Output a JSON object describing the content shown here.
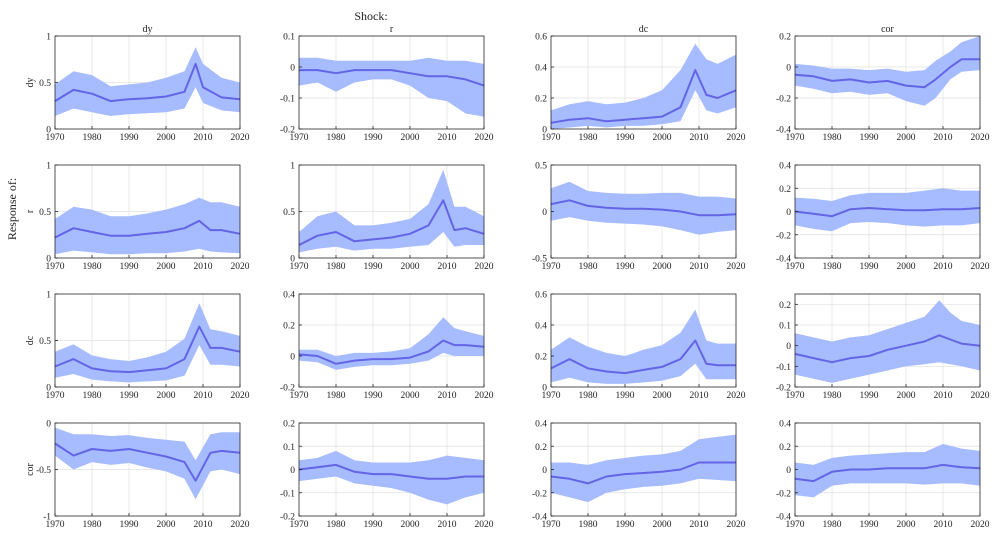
{
  "figure": {
    "shock_label": "Shock:",
    "response_label": "Response of:"
  },
  "colors": {
    "band": "#a7bcff",
    "line": "#6464e6",
    "axis": "#262626",
    "grid": "#e0e0e0"
  },
  "chart_data": {
    "type": "line",
    "layout": "4x4 grid of impulse-response panels; rows = response variable, columns = shock",
    "x_axis": {
      "range": [
        1970,
        2020
      ],
      "ticks": [
        1970,
        1980,
        1990,
        2000,
        2010,
        2020
      ]
    },
    "column_titles": [
      "dy",
      "r",
      "dc",
      "cor"
    ],
    "row_labels": [
      "dy",
      "r",
      "dc",
      "cor"
    ],
    "panels": [
      {
        "row": "dy",
        "col": "dy",
        "ylim": [
          0,
          1
        ],
        "yticks": [
          "0",
          "0.5",
          "1"
        ],
        "x": [
          1970,
          1975,
          1980,
          1985,
          1990,
          1995,
          2000,
          2005,
          2008,
          2010,
          2015,
          2020
        ],
        "y": [
          0.3,
          0.42,
          0.38,
          0.3,
          0.32,
          0.33,
          0.35,
          0.4,
          0.7,
          0.45,
          0.34,
          0.32
        ],
        "lower": [
          0.14,
          0.22,
          0.18,
          0.14,
          0.16,
          0.17,
          0.18,
          0.22,
          0.45,
          0.28,
          0.2,
          0.18
        ],
        "upper": [
          0.48,
          0.62,
          0.58,
          0.46,
          0.48,
          0.5,
          0.55,
          0.62,
          0.88,
          0.7,
          0.55,
          0.5
        ]
      },
      {
        "row": "dy",
        "col": "r",
        "ylim": [
          -0.2,
          0.1
        ],
        "yticks": [
          "-0.2",
          "-0.1",
          "0",
          "0.1"
        ],
        "x": [
          1970,
          1975,
          1980,
          1985,
          1990,
          1995,
          2000,
          2005,
          2010,
          2015,
          2020
        ],
        "y": [
          -0.01,
          -0.01,
          -0.02,
          -0.01,
          -0.01,
          -0.01,
          -0.02,
          -0.03,
          -0.03,
          -0.04,
          -0.06
        ],
        "lower": [
          -0.06,
          -0.05,
          -0.08,
          -0.05,
          -0.04,
          -0.04,
          -0.06,
          -0.1,
          -0.11,
          -0.15,
          -0.16
        ],
        "upper": [
          0.03,
          0.03,
          0.02,
          0.02,
          0.02,
          0.02,
          0.02,
          0.03,
          0.02,
          0.02,
          0.01
        ]
      },
      {
        "row": "dy",
        "col": "dc",
        "ylim": [
          0,
          0.6
        ],
        "yticks": [
          "0",
          "0.2",
          "0.4",
          "0.6"
        ],
        "x": [
          1970,
          1975,
          1980,
          1985,
          1990,
          1995,
          2000,
          2005,
          2009,
          2012,
          2015,
          2020
        ],
        "y": [
          0.04,
          0.06,
          0.07,
          0.05,
          0.06,
          0.07,
          0.08,
          0.14,
          0.38,
          0.22,
          0.2,
          0.25
        ],
        "lower": [
          0.0,
          0.01,
          0.02,
          0.01,
          0.02,
          0.02,
          0.03,
          0.05,
          0.25,
          0.12,
          0.1,
          0.14
        ],
        "upper": [
          0.12,
          0.16,
          0.18,
          0.16,
          0.17,
          0.2,
          0.25,
          0.38,
          0.55,
          0.45,
          0.42,
          0.48
        ]
      },
      {
        "row": "dy",
        "col": "cor",
        "ylim": [
          -0.4,
          0.2
        ],
        "yticks": [
          "-0.4",
          "-0.2",
          "0",
          "0.2"
        ],
        "x": [
          1970,
          1975,
          1980,
          1985,
          1990,
          1995,
          2000,
          2005,
          2008,
          2012,
          2015,
          2020
        ],
        "y": [
          -0.05,
          -0.06,
          -0.09,
          -0.08,
          -0.1,
          -0.09,
          -0.12,
          -0.13,
          -0.08,
          0.0,
          0.05,
          0.05
        ],
        "lower": [
          -0.12,
          -0.14,
          -0.17,
          -0.16,
          -0.18,
          -0.17,
          -0.22,
          -0.25,
          -0.2,
          -0.08,
          -0.03,
          -0.02
        ],
        "upper": [
          0.02,
          0.01,
          -0.01,
          -0.01,
          -0.02,
          -0.01,
          -0.03,
          -0.02,
          0.04,
          0.1,
          0.16,
          0.2
        ]
      },
      {
        "row": "r",
        "col": "dy",
        "ylim": [
          0,
          1
        ],
        "yticks": [
          "0",
          "0.5",
          "1"
        ],
        "x": [
          1970,
          1975,
          1980,
          1985,
          1990,
          1995,
          2000,
          2005,
          2009,
          2012,
          2015,
          2020
        ],
        "y": [
          0.22,
          0.32,
          0.28,
          0.24,
          0.24,
          0.26,
          0.28,
          0.32,
          0.4,
          0.3,
          0.3,
          0.26
        ],
        "lower": [
          0.04,
          0.08,
          0.06,
          0.04,
          0.04,
          0.05,
          0.05,
          0.07,
          0.1,
          0.07,
          0.06,
          0.05
        ],
        "upper": [
          0.42,
          0.55,
          0.52,
          0.45,
          0.45,
          0.48,
          0.52,
          0.58,
          0.65,
          0.6,
          0.6,
          0.55
        ]
      },
      {
        "row": "r",
        "col": "r",
        "ylim": [
          0,
          1
        ],
        "yticks": [
          "0",
          "0.5",
          "1"
        ],
        "x": [
          1970,
          1975,
          1980,
          1985,
          1990,
          1995,
          2000,
          2005,
          2009,
          2012,
          2015,
          2020
        ],
        "y": [
          0.14,
          0.24,
          0.28,
          0.18,
          0.2,
          0.22,
          0.26,
          0.35,
          0.62,
          0.3,
          0.32,
          0.26
        ],
        "lower": [
          0.06,
          0.1,
          0.12,
          0.08,
          0.1,
          0.1,
          0.12,
          0.14,
          0.28,
          0.12,
          0.14,
          0.14
        ],
        "upper": [
          0.28,
          0.45,
          0.5,
          0.35,
          0.35,
          0.38,
          0.42,
          0.58,
          0.95,
          0.55,
          0.55,
          0.45
        ]
      },
      {
        "row": "r",
        "col": "dc",
        "ylim": [
          -0.5,
          0.5
        ],
        "yticks": [
          "-0.5",
          "0",
          "0.5"
        ],
        "x": [
          1970,
          1975,
          1980,
          1985,
          1990,
          1995,
          2000,
          2005,
          2010,
          2015,
          2020
        ],
        "y": [
          0.08,
          0.12,
          0.06,
          0.04,
          0.03,
          0.03,
          0.02,
          0.0,
          -0.04,
          -0.04,
          -0.03
        ],
        "lower": [
          -0.1,
          -0.06,
          -0.1,
          -0.12,
          -0.13,
          -0.14,
          -0.16,
          -0.2,
          -0.25,
          -0.22,
          -0.2
        ],
        "upper": [
          0.25,
          0.32,
          0.22,
          0.2,
          0.19,
          0.19,
          0.2,
          0.2,
          0.16,
          0.16,
          0.14
        ]
      },
      {
        "row": "r",
        "col": "cor",
        "ylim": [
          -0.4,
          0.4
        ],
        "yticks": [
          "-0.4",
          "-0.2",
          "0",
          "0.2",
          "0.4"
        ],
        "x": [
          1970,
          1975,
          1980,
          1985,
          1990,
          1995,
          2000,
          2005,
          2010,
          2015,
          2020
        ],
        "y": [
          0.0,
          -0.02,
          -0.04,
          0.02,
          0.03,
          0.02,
          0.01,
          0.01,
          0.02,
          0.02,
          0.03
        ],
        "lower": [
          -0.12,
          -0.15,
          -0.17,
          -0.1,
          -0.09,
          -0.1,
          -0.12,
          -0.13,
          -0.12,
          -0.12,
          -0.1
        ],
        "upper": [
          0.12,
          0.11,
          0.09,
          0.14,
          0.16,
          0.16,
          0.16,
          0.18,
          0.2,
          0.18,
          0.18
        ]
      },
      {
        "row": "dc",
        "col": "dy",
        "ylim": [
          0,
          1
        ],
        "yticks": [
          "0",
          "0.5",
          "1"
        ],
        "x": [
          1970,
          1975,
          1980,
          1985,
          1990,
          1995,
          2000,
          2005,
          2009,
          2012,
          2015,
          2020
        ],
        "y": [
          0.22,
          0.3,
          0.2,
          0.17,
          0.16,
          0.18,
          0.2,
          0.3,
          0.65,
          0.42,
          0.42,
          0.38
        ],
        "lower": [
          0.1,
          0.14,
          0.08,
          0.06,
          0.05,
          0.06,
          0.07,
          0.12,
          0.45,
          0.24,
          0.24,
          0.22
        ],
        "upper": [
          0.38,
          0.46,
          0.34,
          0.3,
          0.28,
          0.32,
          0.38,
          0.52,
          0.9,
          0.62,
          0.6,
          0.55
        ]
      },
      {
        "row": "dc",
        "col": "r",
        "ylim": [
          -0.2,
          0.4
        ],
        "yticks": [
          "-0.2",
          "0",
          "0.2",
          "0.4"
        ],
        "x": [
          1970,
          1975,
          1980,
          1985,
          1990,
          1995,
          2000,
          2005,
          2009,
          2012,
          2015,
          2020
        ],
        "y": [
          0.01,
          0.0,
          -0.05,
          -0.03,
          -0.02,
          -0.02,
          -0.01,
          0.03,
          0.1,
          0.07,
          0.07,
          0.06
        ],
        "lower": [
          -0.03,
          -0.04,
          -0.09,
          -0.07,
          -0.06,
          -0.06,
          -0.05,
          -0.03,
          0.02,
          0.0,
          0.0,
          0.0
        ],
        "upper": [
          0.04,
          0.04,
          0.0,
          0.02,
          0.02,
          0.03,
          0.05,
          0.14,
          0.25,
          0.18,
          0.16,
          0.13
        ]
      },
      {
        "row": "dc",
        "col": "dc",
        "ylim": [
          0,
          0.6
        ],
        "yticks": [
          "0",
          "0.2",
          "0.4",
          "0.6"
        ],
        "x": [
          1970,
          1975,
          1980,
          1985,
          1990,
          1995,
          2000,
          2005,
          2009,
          2012,
          2015,
          2020
        ],
        "y": [
          0.12,
          0.18,
          0.12,
          0.1,
          0.09,
          0.11,
          0.13,
          0.18,
          0.3,
          0.15,
          0.14,
          0.14
        ],
        "lower": [
          0.03,
          0.06,
          0.03,
          0.02,
          0.02,
          0.03,
          0.04,
          0.07,
          0.15,
          0.05,
          0.05,
          0.05
        ],
        "upper": [
          0.24,
          0.32,
          0.26,
          0.22,
          0.2,
          0.24,
          0.27,
          0.35,
          0.5,
          0.3,
          0.28,
          0.28
        ]
      },
      {
        "row": "dc",
        "col": "cor",
        "ylim": [
          -0.2,
          0.25
        ],
        "yticks": [
          "-0.2",
          "-0.1",
          "0",
          "0.1",
          "0.2"
        ],
        "x": [
          1970,
          1975,
          1980,
          1985,
          1990,
          1995,
          2000,
          2005,
          2009,
          2012,
          2015,
          2020
        ],
        "y": [
          -0.04,
          -0.06,
          -0.08,
          -0.06,
          -0.05,
          -0.02,
          0.0,
          0.02,
          0.05,
          0.03,
          0.01,
          0.0
        ],
        "lower": [
          -0.14,
          -0.16,
          -0.18,
          -0.16,
          -0.14,
          -0.12,
          -0.1,
          -0.09,
          -0.08,
          -0.09,
          -0.1,
          -0.12
        ],
        "upper": [
          0.06,
          0.04,
          0.02,
          0.04,
          0.05,
          0.08,
          0.11,
          0.14,
          0.22,
          0.16,
          0.12,
          0.1
        ]
      },
      {
        "row": "cor",
        "col": "dy",
        "ylim": [
          -1,
          0
        ],
        "yticks": [
          "-1",
          "-0.5",
          "0"
        ],
        "x": [
          1970,
          1975,
          1980,
          1985,
          1990,
          1995,
          2000,
          2005,
          2008,
          2012,
          2015,
          2020
        ],
        "y": [
          -0.22,
          -0.35,
          -0.28,
          -0.3,
          -0.28,
          -0.32,
          -0.36,
          -0.42,
          -0.62,
          -0.32,
          -0.3,
          -0.32
        ],
        "lower": [
          -0.35,
          -0.5,
          -0.42,
          -0.45,
          -0.43,
          -0.48,
          -0.52,
          -0.6,
          -0.82,
          -0.52,
          -0.5,
          -0.55
        ],
        "upper": [
          -0.05,
          -0.12,
          -0.12,
          -0.14,
          -0.13,
          -0.16,
          -0.18,
          -0.2,
          -0.4,
          -0.12,
          -0.1,
          -0.1
        ]
      },
      {
        "row": "cor",
        "col": "r",
        "ylim": [
          -0.2,
          0.2
        ],
        "yticks": [
          "-0.2",
          "-0.1",
          "0",
          "0.1",
          "0.2"
        ],
        "x": [
          1970,
          1975,
          1980,
          1985,
          1990,
          1995,
          2000,
          2005,
          2010,
          2015,
          2020
        ],
        "y": [
          0.0,
          0.01,
          0.02,
          -0.01,
          -0.02,
          -0.02,
          -0.03,
          -0.04,
          -0.04,
          -0.03,
          -0.03
        ],
        "lower": [
          -0.05,
          -0.04,
          -0.03,
          -0.06,
          -0.07,
          -0.08,
          -0.1,
          -0.13,
          -0.15,
          -0.12,
          -0.1
        ],
        "upper": [
          0.04,
          0.05,
          0.08,
          0.04,
          0.03,
          0.03,
          0.03,
          0.04,
          0.06,
          0.05,
          0.04
        ]
      },
      {
        "row": "cor",
        "col": "dc",
        "ylim": [
          -0.4,
          0.4
        ],
        "yticks": [
          "-0.4",
          "-0.2",
          "0",
          "0.2",
          "0.4"
        ],
        "x": [
          1970,
          1975,
          1980,
          1985,
          1990,
          1995,
          2000,
          2005,
          2010,
          2015,
          2020
        ],
        "y": [
          -0.06,
          -0.08,
          -0.12,
          -0.06,
          -0.04,
          -0.03,
          -0.02,
          0.0,
          0.06,
          0.06,
          0.06
        ],
        "lower": [
          -0.2,
          -0.24,
          -0.28,
          -0.2,
          -0.17,
          -0.15,
          -0.14,
          -0.12,
          -0.08,
          -0.09,
          -0.1
        ],
        "upper": [
          0.06,
          0.06,
          0.04,
          0.08,
          0.1,
          0.12,
          0.13,
          0.16,
          0.26,
          0.28,
          0.3
        ]
      },
      {
        "row": "cor",
        "col": "cor",
        "ylim": [
          -0.4,
          0.4
        ],
        "yticks": [
          "-0.4",
          "-0.2",
          "0",
          "0.2",
          "0.4"
        ],
        "x": [
          1970,
          1975,
          1980,
          1985,
          1990,
          1995,
          2000,
          2005,
          2010,
          2015,
          2020
        ],
        "y": [
          -0.08,
          -0.1,
          -0.02,
          0.0,
          0.0,
          0.01,
          0.01,
          0.01,
          0.04,
          0.02,
          0.01
        ],
        "lower": [
          -0.22,
          -0.24,
          -0.14,
          -0.12,
          -0.12,
          -0.12,
          -0.12,
          -0.13,
          -0.12,
          -0.12,
          -0.14
        ],
        "upper": [
          0.06,
          0.04,
          0.1,
          0.12,
          0.13,
          0.14,
          0.15,
          0.15,
          0.22,
          0.18,
          0.16
        ]
      }
    ]
  }
}
